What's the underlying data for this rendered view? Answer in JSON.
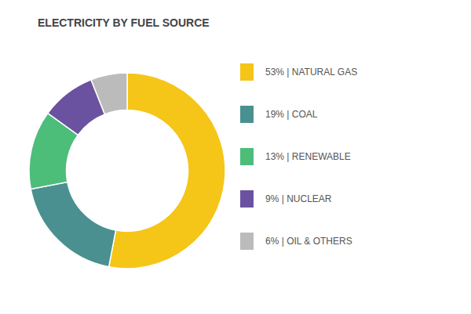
{
  "chart_data": {
    "type": "donut",
    "title": "ELECTRICITY BY FUEL SOURCE",
    "categories": [
      "53% | NATURAL GAS",
      "19% | COAL",
      "13% | RENEWABLE",
      "9% | NUCLEAR",
      "6% | OIL & OTHERS"
    ],
    "values": [
      53,
      19,
      13,
      9,
      6
    ],
    "colors": [
      "#F5C518",
      "#4A9090",
      "#4DBD7A",
      "#6B52A0",
      "#BBBBBB"
    ],
    "legend": "right"
  }
}
